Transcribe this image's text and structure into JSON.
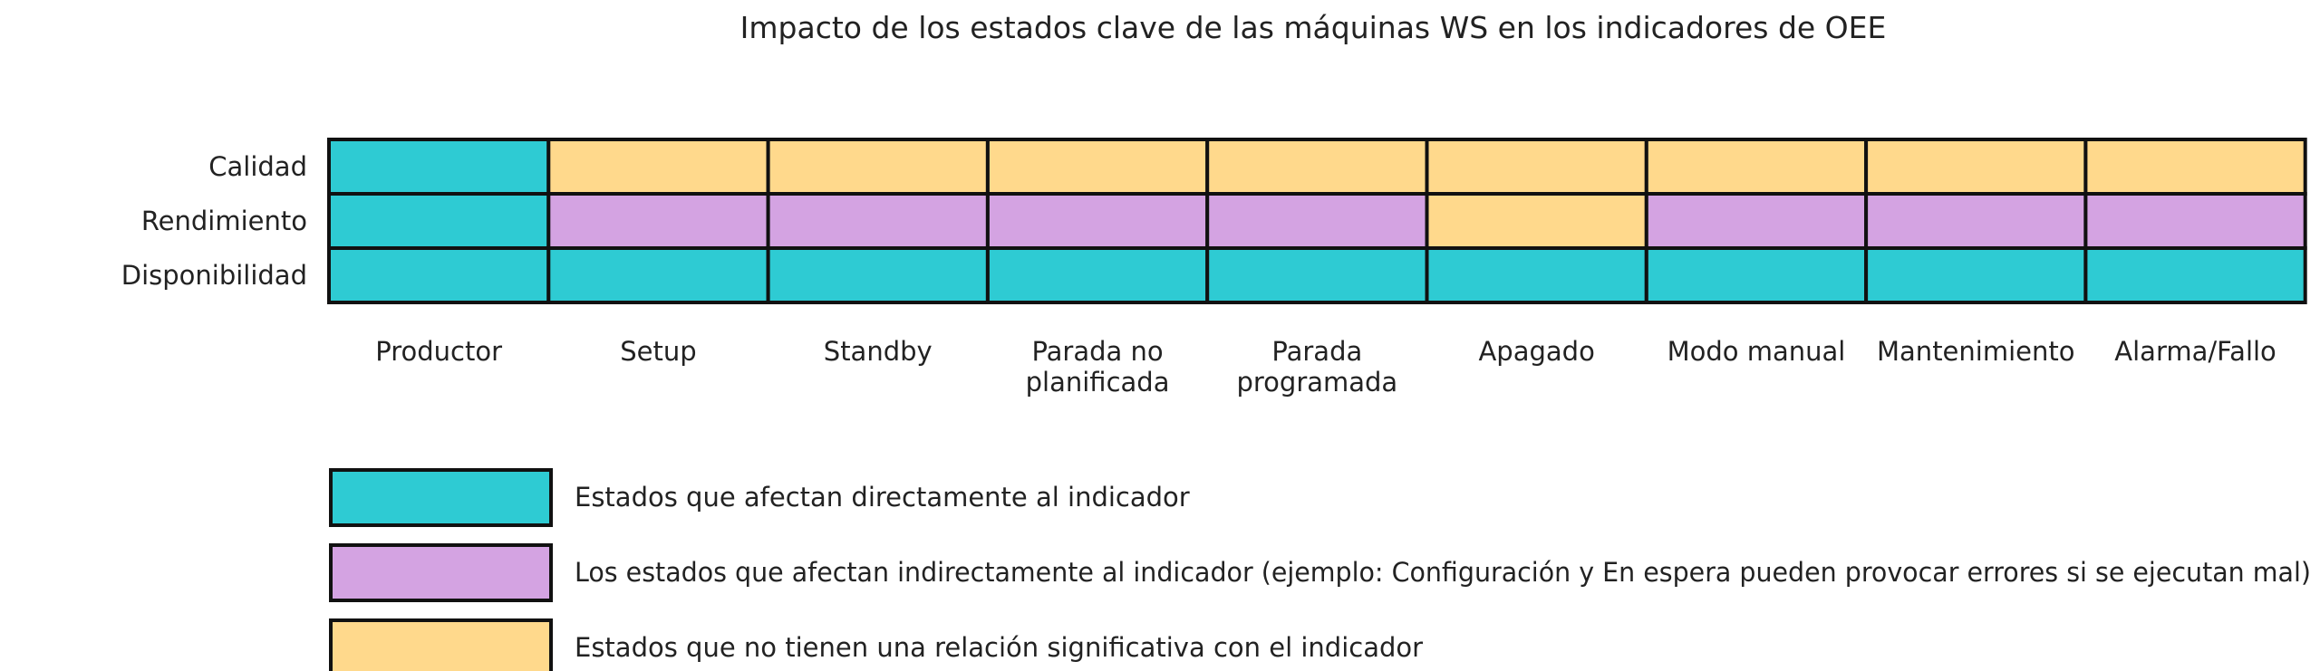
{
  "chart_data": {
    "type": "heatmap",
    "title": "Impacto de los estados clave de las máquinas WS en los indicadores de OEE",
    "rows": [
      "Calidad",
      "Rendimiento",
      "Disponibilidad"
    ],
    "columns": [
      [
        "Productor"
      ],
      [
        "Setup"
      ],
      [
        "Standby"
      ],
      [
        "Parada no",
        "planificada"
      ],
      [
        "Parada",
        "programada"
      ],
      [
        "Apagado"
      ],
      [
        "Modo manual"
      ],
      [
        "Mantenimiento"
      ],
      [
        "Alarma/Fallo"
      ]
    ],
    "values": [
      [
        "direct",
        "none",
        "none",
        "none",
        "none",
        "none",
        "none",
        "none",
        "none"
      ],
      [
        "direct",
        "indirect",
        "indirect",
        "indirect",
        "indirect",
        "none",
        "indirect",
        "indirect",
        "indirect"
      ],
      [
        "direct",
        "direct",
        "direct",
        "direct",
        "direct",
        "direct",
        "direct",
        "direct",
        "direct"
      ]
    ],
    "categories": {
      "direct": {
        "color": "#2ecbd3",
        "label": "Estados que afectan directamente al indicador"
      },
      "indirect": {
        "color": "#d4a3e2",
        "label": "Los estados que afectan indirectamente al indicador (ejemplo: Configuración y En espera pueden provocar errores si se ejecutan mal)"
      },
      "none": {
        "color": "#ffd98c",
        "label": "Estados que no tienen una relación significativa con el indicador"
      }
    },
    "legend_order": [
      "direct",
      "indirect",
      "none"
    ],
    "legend_placement": "bottom-left",
    "border_color": "#111111"
  }
}
